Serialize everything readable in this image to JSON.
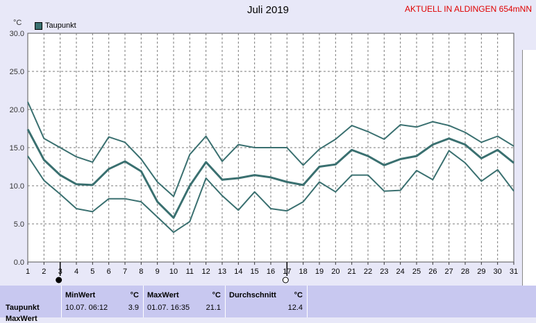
{
  "header": {
    "title": "Juli 2019",
    "station": "AKTUELL IN ALDINGEN 654mNN",
    "unit": "°C"
  },
  "chart_data": {
    "type": "line",
    "title": "Juli 2019",
    "ylabel": "°C",
    "ylim": [
      0,
      30
    ],
    "yticks": [
      "0.0",
      "5.0",
      "10.0",
      "15.0",
      "20.0",
      "25.0",
      "30.0"
    ],
    "xticks": [
      "1",
      "2",
      "3",
      "4",
      "5",
      "6",
      "7",
      "8",
      "9",
      "10",
      "11",
      "12",
      "13",
      "14",
      "15",
      "16",
      "17",
      "18",
      "19",
      "20",
      "21",
      "22",
      "23",
      "24",
      "25",
      "26",
      "27",
      "28",
      "29",
      "30",
      "31"
    ],
    "grid": true,
    "legend": "top-left",
    "legend_label": "Taupunkt",
    "series": [
      {
        "key": "max",
        "values": [
          21.0,
          16.2,
          15.0,
          13.8,
          13.1,
          16.4,
          15.7,
          13.5,
          10.5,
          8.6,
          14.1,
          16.5,
          13.2,
          15.4,
          15.0,
          15.0,
          15.0,
          12.7,
          14.8,
          16.1,
          17.9,
          17.1,
          16.1,
          18.0,
          17.7,
          18.4,
          17.9,
          17.0,
          15.7,
          16.5,
          15.2
        ]
      },
      {
        "key": "avg",
        "values": [
          17.4,
          13.4,
          11.4,
          10.2,
          10.1,
          12.2,
          13.2,
          11.9,
          7.9,
          5.8,
          10.0,
          13.1,
          10.8,
          11.0,
          11.4,
          11.1,
          10.5,
          10.1,
          12.5,
          12.8,
          14.7,
          13.9,
          12.7,
          13.5,
          13.9,
          15.4,
          16.2,
          15.4,
          13.6,
          14.7,
          13.0
        ]
      },
      {
        "key": "min",
        "values": [
          13.9,
          10.7,
          8.9,
          7.0,
          6.6,
          8.3,
          8.3,
          7.9,
          5.9,
          3.9,
          5.3,
          11.0,
          8.7,
          6.8,
          9.2,
          7.0,
          6.7,
          7.9,
          10.5,
          9.2,
          11.4,
          11.4,
          9.3,
          9.4,
          12.0,
          10.8,
          14.6,
          13.0,
          10.6,
          12.1,
          9.3
        ]
      }
    ],
    "markers": [
      {
        "day": 3,
        "icon": "full-moon-icon"
      },
      {
        "day": 17,
        "icon": "new-moon-icon"
      }
    ]
  },
  "stats": {
    "row_label": "Taupunkt",
    "row_label2": "MaxWert",
    "min_header": "MinWert",
    "max_header": "MaxWert",
    "avg_header": "Durchschnitt",
    "unit": "°C",
    "min_time": "10.07.  06:12",
    "min_value": "3.9",
    "max_time": "01.07.  16:35",
    "max_value": "21.1",
    "avg_value": "12.4"
  },
  "colors": {
    "line": "#3a7070",
    "grid": "#7a7a7a",
    "plot_bg": "#ffffff",
    "page_bg": "#e8e8f8",
    "table_bg": "#c8c8f0",
    "accent": "#e00000"
  }
}
